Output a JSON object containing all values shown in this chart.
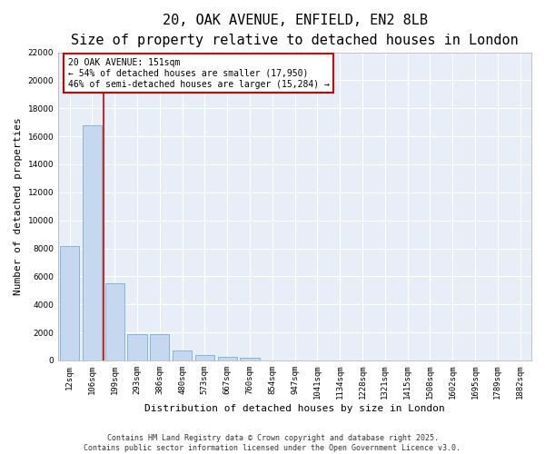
{
  "title_line1": "20, OAK AVENUE, ENFIELD, EN2 8LB",
  "title_line2": "Size of property relative to detached houses in London",
  "xlabel": "Distribution of detached houses by size in London",
  "ylabel": "Number of detached properties",
  "categories": [
    "12sqm",
    "106sqm",
    "199sqm",
    "293sqm",
    "386sqm",
    "480sqm",
    "573sqm",
    "667sqm",
    "760sqm",
    "854sqm",
    "947sqm",
    "1041sqm",
    "1134sqm",
    "1228sqm",
    "1321sqm",
    "1415sqm",
    "1508sqm",
    "1602sqm",
    "1695sqm",
    "1789sqm",
    "1882sqm"
  ],
  "values": [
    8150,
    16800,
    5500,
    1900,
    1850,
    700,
    370,
    280,
    190,
    0,
    0,
    0,
    0,
    0,
    0,
    0,
    0,
    0,
    0,
    0,
    0
  ],
  "bar_color": "#c5d8f0",
  "bar_edge_color": "#7aadd4",
  "fig_bg_color": "#ffffff",
  "plot_bg_color": "#e8eef8",
  "grid_color": "#ffffff",
  "vline_color": "#cc0000",
  "vline_x_index": 1.5,
  "annotation_line1": "20 OAK AVENUE: 151sqm",
  "annotation_line2": "← 54% of detached houses are smaller (17,950)",
  "annotation_line3": "46% of semi-detached houses are larger (15,284) →",
  "annotation_box_color": "#cc0000",
  "ylim": [
    0,
    22000
  ],
  "yticks": [
    0,
    2000,
    4000,
    6000,
    8000,
    10000,
    12000,
    14000,
    16000,
    18000,
    20000,
    22000
  ],
  "footer_line1": "Contains HM Land Registry data © Crown copyright and database right 2025.",
  "footer_line2": "Contains public sector information licensed under the Open Government Licence v3.0.",
  "title_fontsize": 11,
  "subtitle_fontsize": 9,
  "axis_label_fontsize": 8,
  "tick_fontsize": 6.5,
  "annotation_fontsize": 7,
  "footer_fontsize": 6
}
